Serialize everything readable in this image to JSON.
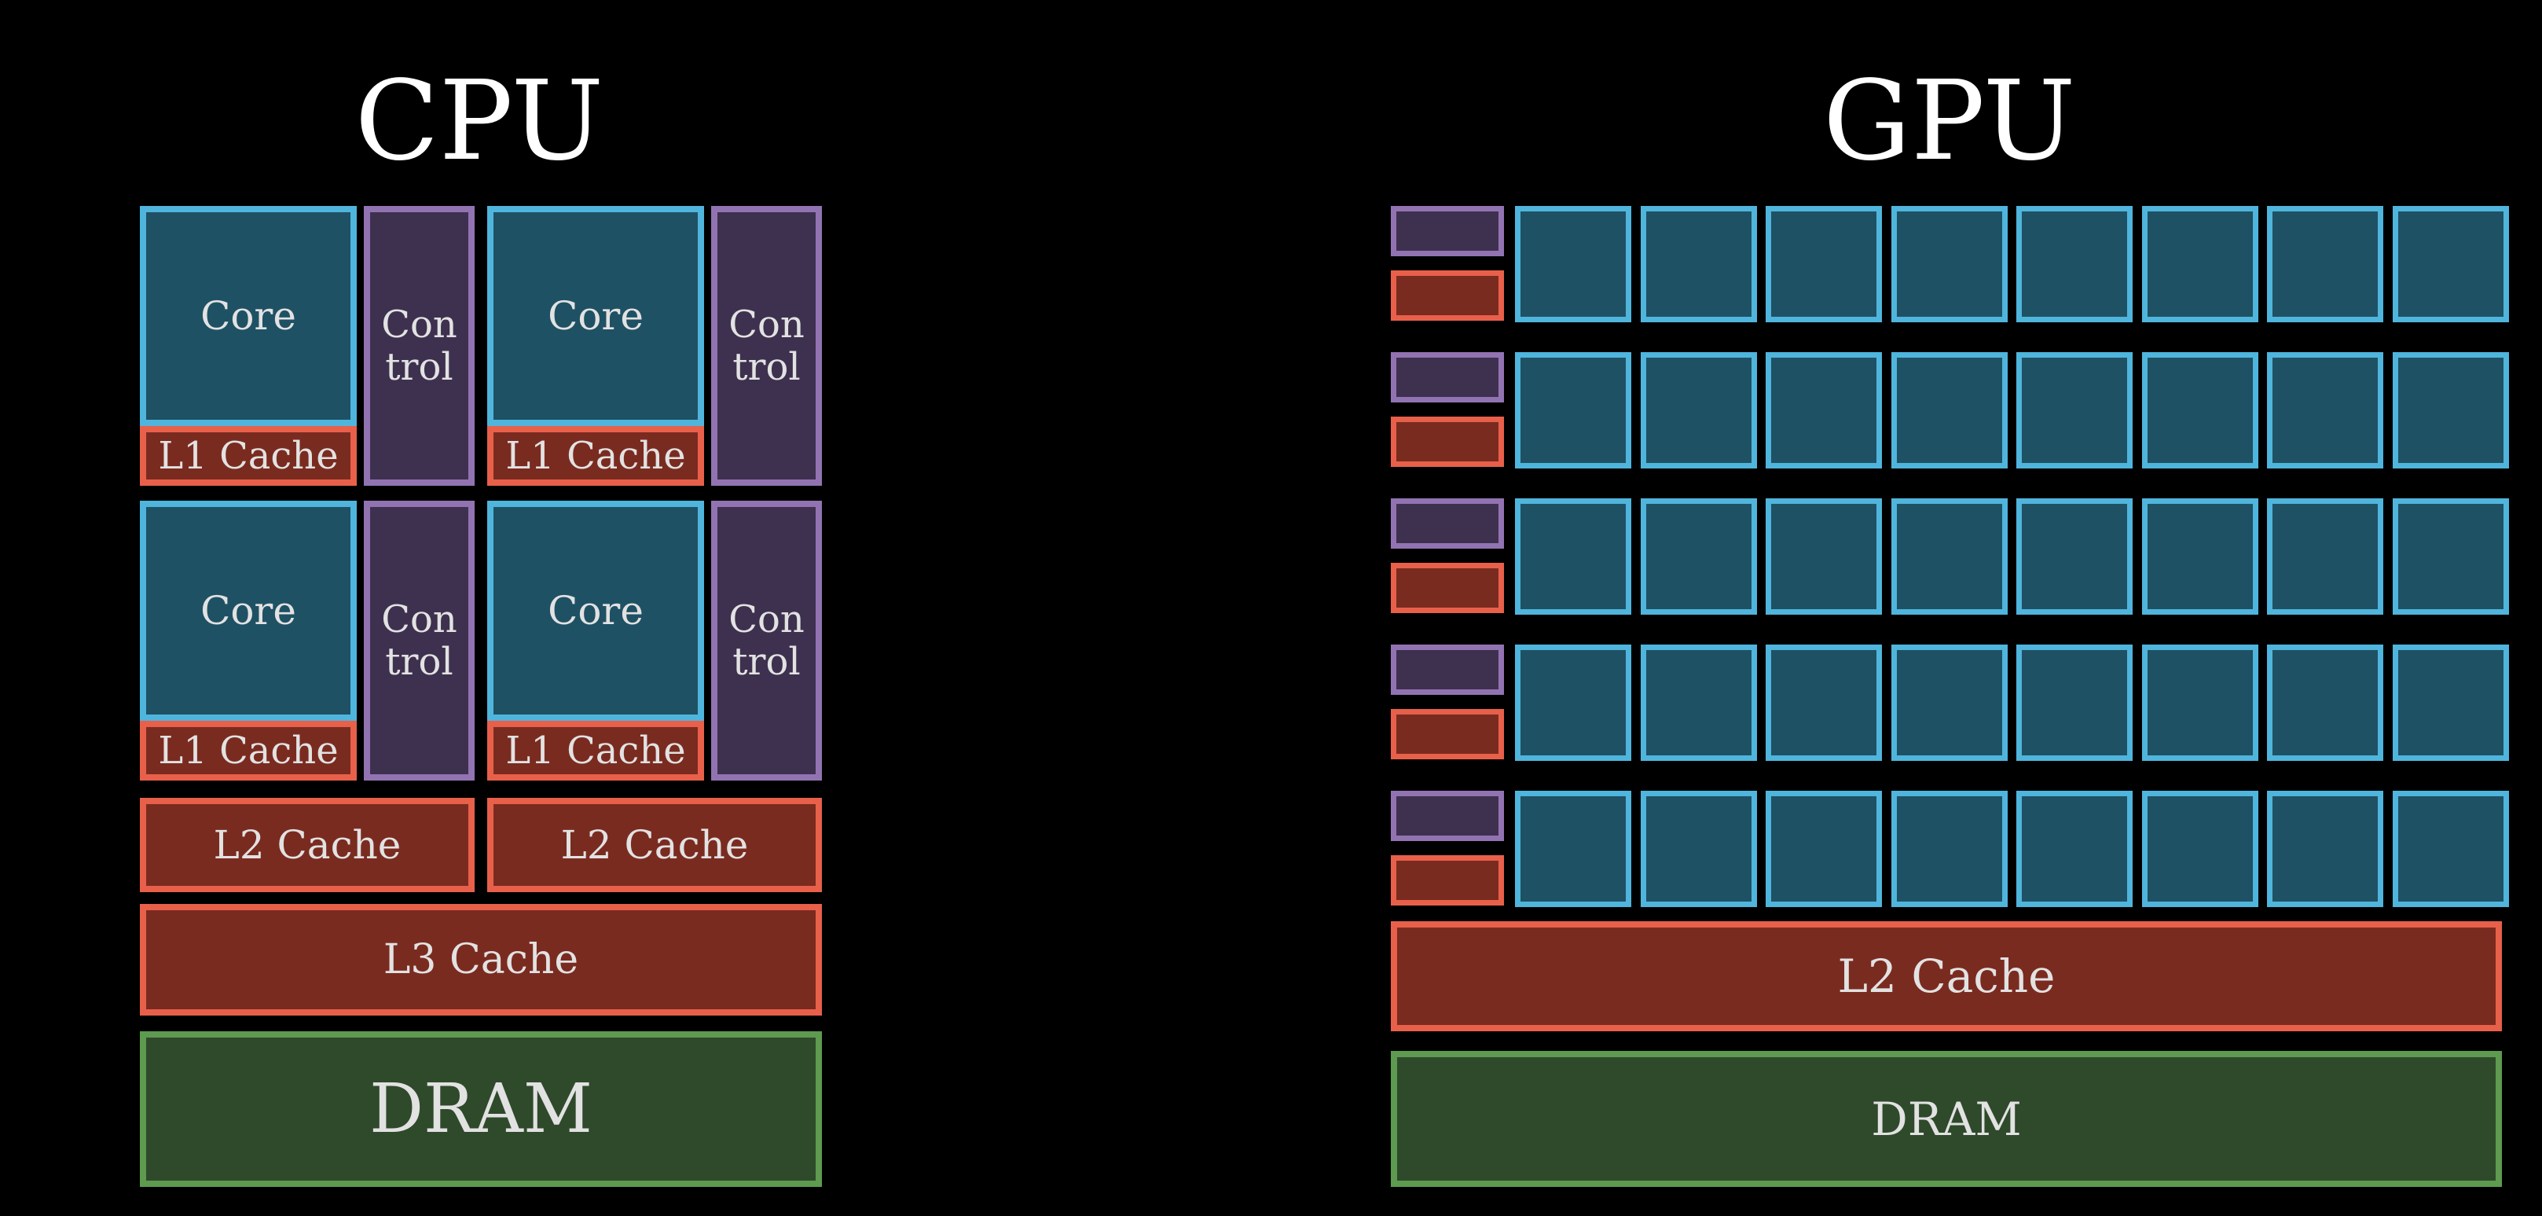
{
  "cpu": {
    "title": "CPU",
    "core_label": "Core",
    "control_label_line1": "Con",
    "control_label_line2": "trol",
    "l1_label": "L1 Cache",
    "l2_label": "L2 Cache",
    "l3_label": "L3 Cache",
    "dram_label": "DRAM"
  },
  "gpu": {
    "title": "GPU",
    "rows": 5,
    "cores_per_row": 8,
    "l2_label": "L2 Cache",
    "dram_label": "DRAM"
  },
  "colors": {
    "background": "#000000",
    "core_fill": "#1f5164",
    "core_border": "#4fb5dc",
    "control_fill": "#3e314f",
    "control_border": "#9273b2",
    "cache_fill": "#7a2b20",
    "cache_border": "#e8604a",
    "dram_fill": "#2f4a2b",
    "dram_border": "#5e9a4f"
  }
}
